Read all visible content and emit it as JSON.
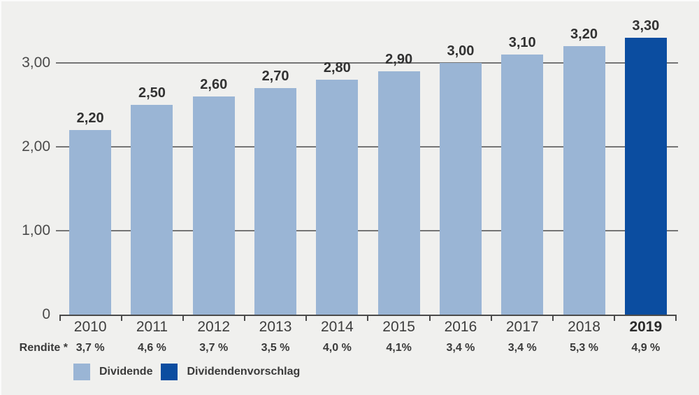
{
  "colors": {
    "background": "#f0f0ee",
    "bar_light": "#9ab5d5",
    "bar_dark": "#0b4da0",
    "grid": "#757575",
    "axis": "#4a4a4a",
    "text": "#3a3a3a"
  },
  "chart_data": {
    "type": "bar",
    "title": "",
    "categories": [
      "2010",
      "2011",
      "2012",
      "2013",
      "2014",
      "2015",
      "2016",
      "2017",
      "2018",
      "2019"
    ],
    "values": [
      2.2,
      2.5,
      2.6,
      2.7,
      2.8,
      2.9,
      3.0,
      3.1,
      3.2,
      3.3
    ],
    "value_labels": [
      "2,20",
      "2,50",
      "2,60",
      "2,70",
      "2,80",
      "2,90",
      "3,00",
      "3,10",
      "3,20",
      "3,30"
    ],
    "highlight_index": 9,
    "ylim": [
      0,
      3.5
    ],
    "grid": true,
    "yticks": [
      {
        "value": 0,
        "label": "0"
      },
      {
        "value": 1,
        "label": "1,00"
      },
      {
        "value": 2,
        "label": "2,00"
      },
      {
        "value": 3,
        "label": "3,00"
      }
    ],
    "rendite_label": "Rendite *",
    "rendite_values": [
      "3,7 %",
      "4,6 %",
      "3,7 %",
      "3,5 %",
      "4,0 %",
      "4,1%",
      "3,4 %",
      "3,4 %",
      "5,3 %",
      "4,9 %"
    ],
    "legend": [
      {
        "label": "Dividende",
        "color": "#9ab5d5"
      },
      {
        "label": "Dividendenvorschlag",
        "color": "#0b4da0"
      }
    ],
    "legend_position": "bottom-left"
  }
}
